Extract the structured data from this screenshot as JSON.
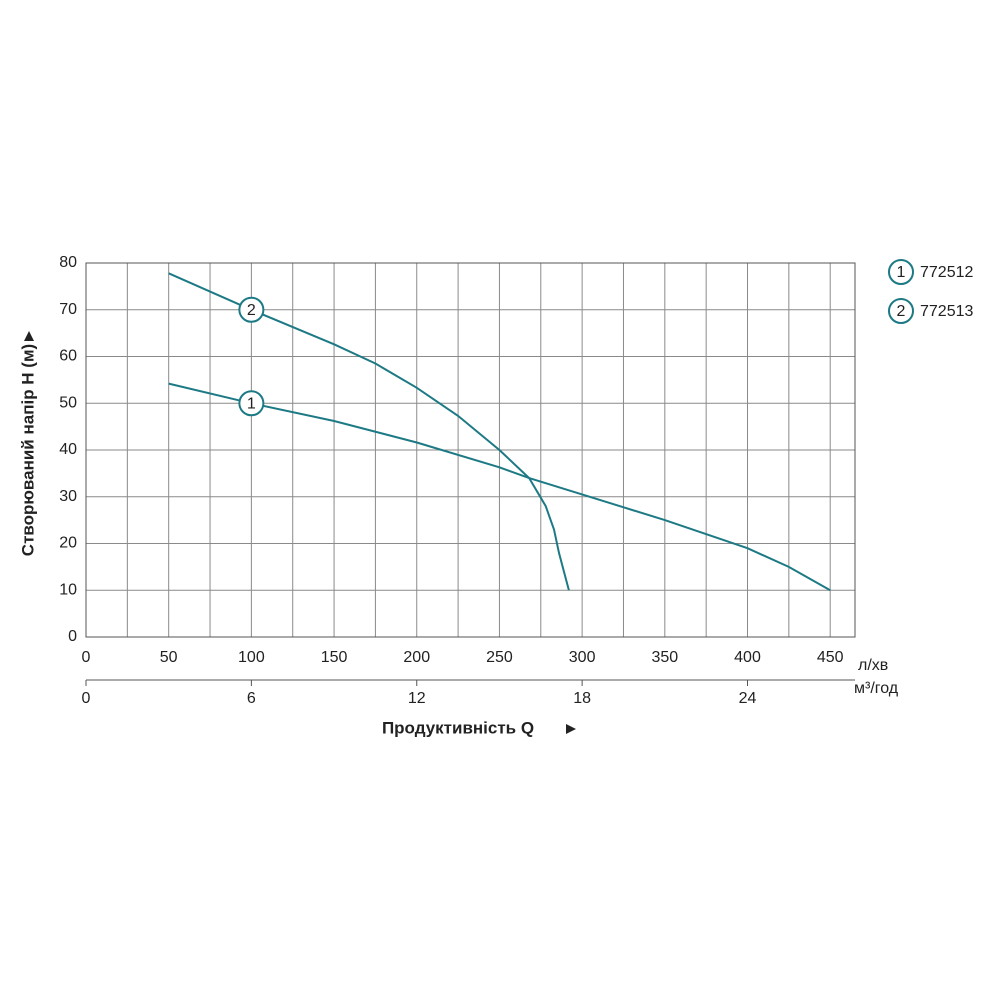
{
  "chart_data": {
    "type": "line",
    "xlabel": "Продуктивність  Q",
    "ylabel": "Створюваний напір H (м)",
    "x_unit": "л/хв",
    "x2_unit": "м³/год",
    "xlim": [
      0,
      465
    ],
    "xticks": [
      0,
      50,
      100,
      150,
      200,
      250,
      300,
      350,
      400,
      450
    ],
    "xgrid_minor": [
      25,
      75,
      125,
      175,
      225,
      275,
      325,
      375,
      425
    ],
    "x2lim": [
      0,
      27.9
    ],
    "x2ticks": [
      0,
      6,
      12,
      18,
      24
    ],
    "ylim": [
      0,
      80
    ],
    "yticks": [
      0,
      10,
      20,
      30,
      40,
      50,
      60,
      70,
      80
    ],
    "grid": true,
    "series": [
      {
        "name": "772512",
        "marker": "1",
        "color": "#1d7a85",
        "x": [
          50,
          100,
          150,
          200,
          250,
          268,
          300,
          350,
          400,
          425,
          450
        ],
        "values": [
          54.2,
          50,
          46.2,
          41.6,
          36.3,
          34,
          30.5,
          25,
          19,
          15,
          10
        ]
      },
      {
        "name": "772513",
        "marker": "2",
        "color": "#1d7a85",
        "x": [
          50,
          100,
          150,
          175,
          200,
          225,
          250,
          268,
          278,
          283,
          286,
          289,
          292
        ],
        "values": [
          77.8,
          70,
          62.6,
          58.5,
          53.3,
          47.3,
          40,
          34,
          28,
          23,
          18,
          14,
          10
        ]
      }
    ]
  }
}
